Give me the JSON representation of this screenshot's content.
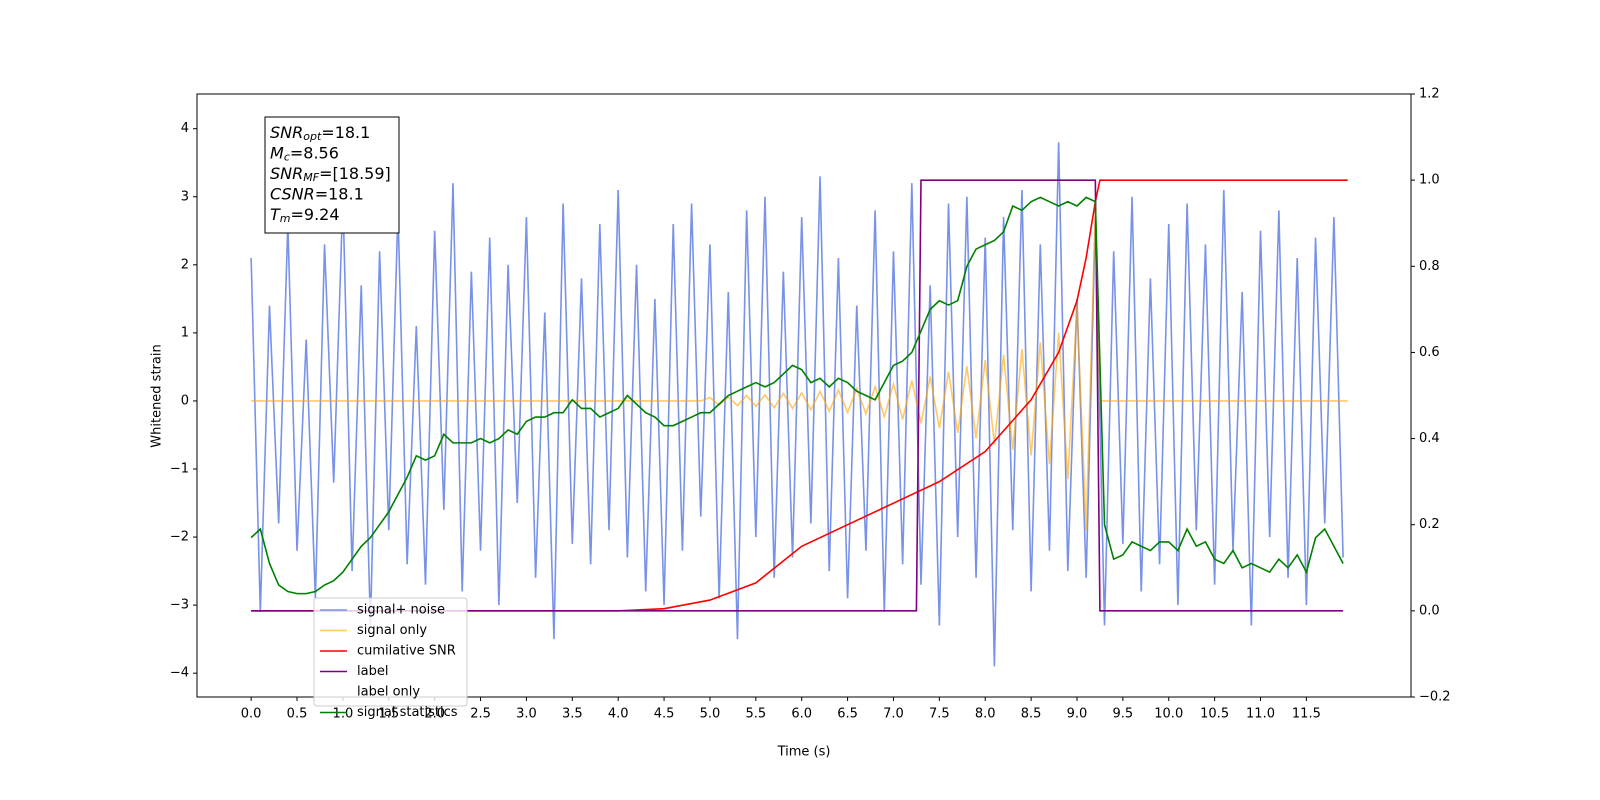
{
  "chart_data": {
    "type": "line",
    "xlabel": "Time (s)",
    "ylabel": "Whitened strain",
    "xlim": [
      -0.59,
      12.64
    ],
    "ylim": [
      -4.35,
      4.51
    ],
    "y2lim": [
      -0.2,
      1.2
    ],
    "xticks": [
      {
        "value": 0,
        "label": "0.0"
      },
      0.5,
      {
        "value": 1,
        "label": "1.0"
      },
      1.5,
      {
        "value": 2,
        "label": "2.0"
      },
      2.5,
      {
        "value": 3,
        "label": "3.0"
      },
      3.5,
      {
        "value": 4,
        "label": "4.0"
      },
      4.5,
      {
        "value": 5,
        "label": "5.0"
      },
      5.5,
      {
        "value": 6,
        "label": "6.0"
      },
      6.5,
      {
        "value": 7,
        "label": "7.0"
      },
      7.5,
      {
        "value": 8,
        "label": "8.0"
      },
      8.5,
      {
        "value": 9,
        "label": "9.0"
      },
      9.5,
      {
        "value": 10,
        "label": "10.0"
      },
      10.5,
      {
        "value": 11,
        "label": "11.0"
      },
      11.5
    ],
    "yticks": [
      {
        "value": -4,
        "label": "−4"
      },
      {
        "value": -3,
        "label": "−3"
      },
      {
        "value": -2,
        "label": "−2"
      },
      {
        "value": -1,
        "label": "−1"
      },
      0,
      1,
      2,
      3,
      4
    ],
    "y2ticks": [
      {
        "value": -0.2,
        "label": "−0.2"
      },
      {
        "value": 0,
        "label": "0.0"
      },
      0.2,
      0.4,
      0.6,
      0.8,
      {
        "value": 1,
        "label": "1.0"
      },
      1.2
    ],
    "annotation": [
      {
        "name": "SNR",
        "sub": "opt",
        "text": "=18.1"
      },
      {
        "name": "M",
        "sub": "c",
        "text": "=8.56"
      },
      {
        "name": "SNR",
        "sub": "MF",
        "text": "=[18.59]"
      },
      {
        "name": "CSNR",
        "text": "=18.1"
      },
      {
        "name": "T",
        "sub": "m",
        "text": "=9.24"
      }
    ],
    "legend": "lower left",
    "x": [
      0.0,
      0.1,
      0.2,
      0.3,
      0.4,
      0.5,
      0.6,
      0.7,
      0.8,
      0.9,
      1.0,
      1.1,
      1.2,
      1.3,
      1.4,
      1.5,
      1.6,
      1.7,
      1.8,
      1.9,
      2.0,
      2.1,
      2.2,
      2.3,
      2.4,
      2.5,
      2.6,
      2.7,
      2.8,
      2.9,
      3.0,
      3.1,
      3.2,
      3.3,
      3.4,
      3.5,
      3.6,
      3.7,
      3.8,
      3.9,
      4.0,
      4.1,
      4.2,
      4.3,
      4.4,
      4.5,
      4.6,
      4.7,
      4.8,
      4.9,
      5.0,
      5.1,
      5.2,
      5.3,
      5.4,
      5.5,
      5.6,
      5.7,
      5.8,
      5.9,
      6.0,
      6.1,
      6.2,
      6.3,
      6.4,
      6.5,
      6.6,
      6.7,
      6.8,
      6.9,
      7.0,
      7.1,
      7.2,
      7.3,
      7.4,
      7.5,
      7.6,
      7.7,
      7.8,
      7.9,
      8.0,
      8.1,
      8.2,
      8.3,
      8.4,
      8.5,
      8.6,
      8.7,
      8.8,
      8.9,
      9.0,
      9.1,
      9.2,
      9.3,
      9.4,
      9.5,
      9.6,
      9.7,
      9.8,
      9.9,
      10.0,
      10.1,
      10.2,
      10.3,
      10.4,
      10.5,
      10.6,
      10.7,
      10.8,
      10.9,
      11.0,
      11.1,
      11.2,
      11.3,
      11.4,
      11.5,
      11.6,
      11.7,
      11.8,
      11.9
    ],
    "series": [
      {
        "name": "signal+ noise",
        "color": "#7892e8",
        "values": [
          2.1,
          -3.1,
          1.4,
          -1.8,
          2.6,
          -2.2,
          0.9,
          -2.9,
          2.3,
          -1.2,
          3.0,
          -2.5,
          1.7,
          -3.3,
          2.2,
          -1.9,
          2.8,
          -2.4,
          1.1,
          -2.7,
          2.5,
          -1.6,
          3.2,
          -2.8,
          1.9,
          -2.2,
          2.4,
          -3.0,
          2.0,
          -1.5,
          2.7,
          -2.6,
          1.3,
          -3.5,
          2.9,
          -2.1,
          1.8,
          -2.4,
          2.6,
          -1.9,
          3.1,
          -2.3,
          2.0,
          -2.8,
          1.5,
          -3.0,
          2.6,
          -2.2,
          2.9,
          -1.7,
          2.3,
          -2.9,
          1.6,
          -3.5,
          2.8,
          -2.0,
          3.0,
          -2.6,
          1.9,
          -2.3,
          2.7,
          -1.8,
          3.3,
          -2.5,
          2.1,
          -2.9,
          1.4,
          -2.2,
          2.8,
          -3.1,
          2.2,
          -2.4,
          3.2,
          -2.7,
          1.7,
          -3.3,
          2.9,
          -2.0,
          3.0,
          -2.6,
          2.4,
          -3.9,
          2.7,
          -1.9,
          3.1,
          -2.8,
          2.3,
          -2.2,
          3.8,
          -2.5,
          1.5,
          -2.6,
          2.7,
          -3.3,
          2.2,
          -2.1,
          3.0,
          -2.8,
          1.8,
          -2.4,
          2.6,
          -3.0,
          2.9,
          -1.9,
          2.3,
          -2.7,
          3.1,
          -2.2,
          1.6,
          -3.3,
          2.5,
          -2.0,
          2.8,
          -2.6,
          2.1,
          -3.0,
          2.4,
          -1.8,
          2.7,
          -2.3
        ]
      },
      {
        "name": "signal only",
        "color": "#ffa500",
        "x": [
          0.0,
          4.9,
          5.0,
          5.1,
          5.2,
          5.3,
          5.4,
          5.5,
          5.6,
          5.7,
          5.8,
          5.9,
          6.0,
          6.1,
          6.2,
          6.3,
          6.4,
          6.5,
          6.6,
          6.7,
          6.8,
          6.9,
          7.0,
          7.1,
          7.2,
          7.3,
          7.4,
          7.5,
          7.6,
          7.7,
          7.8,
          7.9,
          8.0,
          8.1,
          8.2,
          8.3,
          8.4,
          8.5,
          8.6,
          8.7,
          8.8,
          8.9,
          9.0,
          9.1,
          9.2,
          9.25,
          11.95
        ],
        "values": [
          0,
          0,
          0.05,
          -0.06,
          0.06,
          -0.07,
          0.08,
          -0.08,
          0.09,
          -0.1,
          0.11,
          -0.11,
          0.12,
          -0.13,
          0.14,
          -0.15,
          0.16,
          -0.17,
          0.18,
          -0.19,
          0.21,
          -0.23,
          0.25,
          -0.27,
          0.3,
          -0.33,
          0.36,
          -0.4,
          0.43,
          -0.47,
          0.51,
          -0.55,
          0.6,
          -0.64,
          0.68,
          -0.72,
          0.76,
          -0.8,
          0.86,
          -0.93,
          1.0,
          -1.15,
          1.4,
          -1.9,
          2.8,
          0,
          0
        ]
      },
      {
        "name": "cumilative SNR",
        "color": "#ff0000",
        "axis": "y2",
        "x": [
          0.0,
          4.0,
          4.5,
          5.0,
          5.5,
          6.0,
          6.5,
          7.0,
          7.5,
          8.0,
          8.5,
          8.8,
          9.0,
          9.1,
          9.2,
          9.25,
          11.95
        ],
        "values": [
          0,
          0,
          0.005,
          0.025,
          0.065,
          0.15,
          0.2,
          0.25,
          0.3,
          0.37,
          0.49,
          0.6,
          0.72,
          0.82,
          0.95,
          1.0,
          1.0
        ]
      },
      {
        "name": "label",
        "color": "#800080",
        "axis": "y2",
        "x": [
          0.0,
          7.25,
          7.3,
          9.2,
          9.25,
          11.9
        ],
        "values": [
          0,
          0,
          1,
          1,
          0,
          0
        ]
      },
      {
        "name": "label only",
        "color": "#ffffff"
      },
      {
        "name": "signal statistics",
        "color": "#008000",
        "axis": "y2",
        "values": [
          0.17,
          0.19,
          0.11,
          0.06,
          0.045,
          0.04,
          0.04,
          0.045,
          0.06,
          0.07,
          0.09,
          0.12,
          0.15,
          0.17,
          0.2,
          0.23,
          0.27,
          0.31,
          0.36,
          0.35,
          0.36,
          0.41,
          0.39,
          0.39,
          0.39,
          0.4,
          0.39,
          0.4,
          0.42,
          0.41,
          0.44,
          0.45,
          0.45,
          0.46,
          0.46,
          0.49,
          0.47,
          0.47,
          0.45,
          0.46,
          0.47,
          0.5,
          0.48,
          0.46,
          0.45,
          0.43,
          0.43,
          0.44,
          0.45,
          0.46,
          0.46,
          0.48,
          0.5,
          0.51,
          0.52,
          0.53,
          0.52,
          0.53,
          0.55,
          0.57,
          0.56,
          0.53,
          0.54,
          0.52,
          0.54,
          0.53,
          0.51,
          0.5,
          0.49,
          0.53,
          0.57,
          0.58,
          0.6,
          0.65,
          0.7,
          0.72,
          0.71,
          0.72,
          0.8,
          0.84,
          0.85,
          0.86,
          0.88,
          0.94,
          0.93,
          0.95,
          0.96,
          0.95,
          0.94,
          0.95,
          0.94,
          0.96,
          0.95,
          0.2,
          0.12,
          0.13,
          0.16,
          0.15,
          0.14,
          0.16,
          0.16,
          0.14,
          0.19,
          0.15,
          0.16,
          0.12,
          0.11,
          0.14,
          0.1,
          0.11,
          0.1,
          0.09,
          0.12,
          0.1,
          0.13,
          0.09,
          0.17,
          0.19,
          0.15,
          0.11
        ]
      }
    ]
  }
}
